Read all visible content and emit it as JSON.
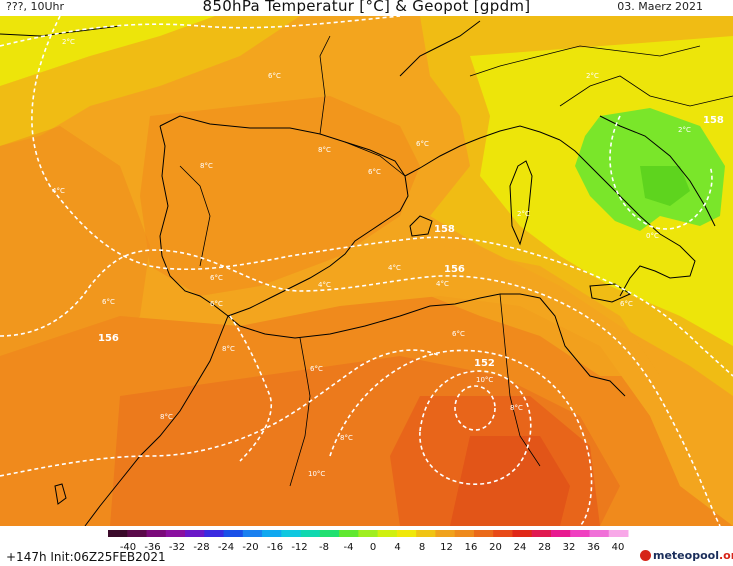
{
  "header": {
    "left_text": "???, 10Uhr",
    "title": "850hPa Temperatur [°C] & Geopot [gpdm]",
    "date": "03. Maerz 2021"
  },
  "map": {
    "geopotential_labels": [
      "158",
      "156",
      "156",
      "158",
      "152"
    ],
    "temperature_labels": [
      "2°C",
      "6°C",
      "8°C",
      "4°C",
      "8°C",
      "6°C",
      "4°C",
      "4°C",
      "2°C",
      "2°C",
      "2°C",
      "0°C",
      "4°C",
      "6°C",
      "6°C",
      "6°C",
      "8°C",
      "6°C",
      "10°C",
      "8°C",
      "8°C",
      "6°C",
      "10°C",
      "6°C",
      "8°C",
      "6°C"
    ],
    "colors": {
      "orange_dark": "#e8651a",
      "orange": "#f08a1c",
      "orange_light": "#f3a51e",
      "yellow_orange": "#f0bc14",
      "yellow": "#ede50a",
      "green": "#7ae62a",
      "isoline": "#ffffff",
      "coast": "#000000"
    }
  },
  "legend": {
    "tick_labels": [
      "-40",
      "-36",
      "-32",
      "-28",
      "-24",
      "-20",
      "-16",
      "-12",
      "-8",
      "-4",
      "0",
      "4",
      "8",
      "12",
      "16",
      "20",
      "24",
      "28",
      "32",
      "36",
      "40"
    ],
    "colors": [
      "#3a0a2a",
      "#5a0a4a",
      "#7a0a7a",
      "#8a10a0",
      "#6a18c8",
      "#3a2ae0",
      "#1a50e8",
      "#1a80f0",
      "#10a8f0",
      "#10c8e0",
      "#10d8b0",
      "#20e070",
      "#60e830",
      "#a0ee20",
      "#d0f010",
      "#f0e80a",
      "#f0c414",
      "#f0a21c",
      "#ee8a1c",
      "#ea6a1a",
      "#e84a18",
      "#e02818",
      "#e01a50",
      "#e81a90",
      "#f040c0",
      "#f070d8",
      "#f8a8e8"
    ]
  },
  "footer": {
    "run_info": "+147h Init:06Z25FEB2021",
    "brand_main": "meteo",
    "brand_bold": "pool",
    "brand_tld": ".org"
  }
}
